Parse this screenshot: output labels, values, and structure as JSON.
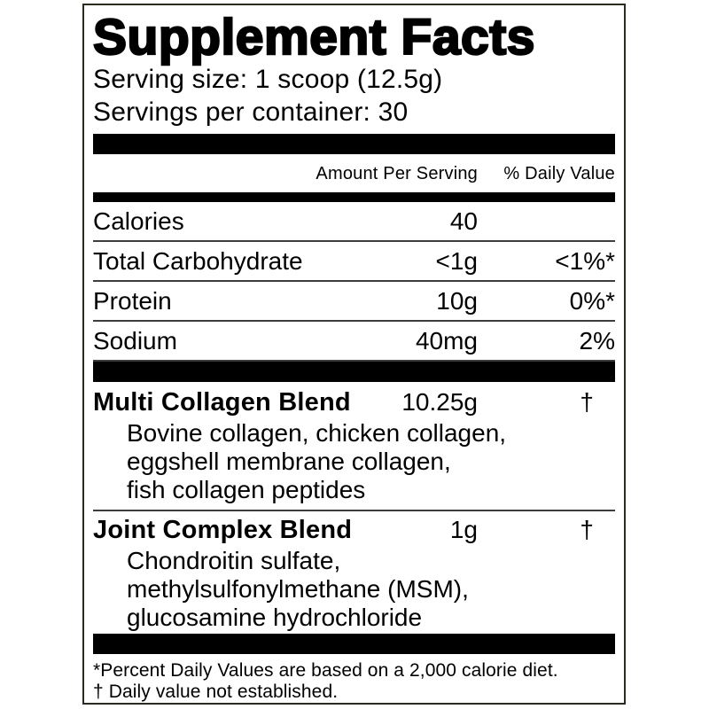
{
  "label": {
    "title": "Supplement Facts",
    "serving_size": "Serving size: 1 scoop (12.5g)",
    "servings_per_container": "Servings per container: 30",
    "columns": {
      "amount": "Amount Per Serving",
      "dv": "% Daily Value"
    },
    "nutrients": [
      {
        "name": "Calories",
        "amount": "40",
        "dv": ""
      },
      {
        "name": "Total Carbohydrate",
        "amount": "<1g",
        "dv": "<1%*"
      },
      {
        "name": "Protein",
        "amount": "10g",
        "dv": "0%*"
      },
      {
        "name": "Sodium",
        "amount": "40mg",
        "dv": "2%"
      }
    ],
    "blends": [
      {
        "name": "Multi Collagen Blend",
        "amount": "10.25g",
        "dv": "†",
        "ingredients": [
          "Bovine collagen, chicken collagen,",
          "eggshell membrane collagen,",
          "fish collagen peptides"
        ]
      },
      {
        "name": "Joint Complex Blend",
        "amount": "1g",
        "dv": "†",
        "ingredients": [
          "Chondroitin sulfate,",
          "methylsulfonylmethane (MSM),",
          "glucosamine hydrochloride"
        ]
      }
    ],
    "footnotes": [
      "*Percent Daily Values are based on a 2,000 calorie diet.",
      "† Daily value not established."
    ],
    "colors": {
      "text": "#000000",
      "background": "#ffffff",
      "border": "#2b2b1f",
      "bar": "#000000"
    }
  }
}
